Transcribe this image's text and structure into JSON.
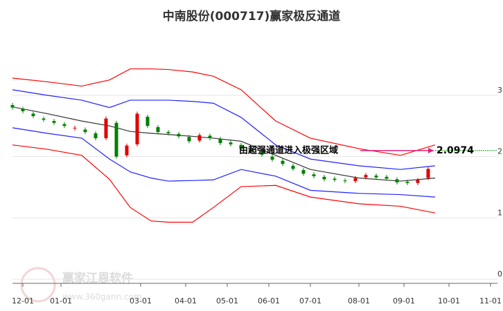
{
  "chart_data": {
    "type": "candlestick",
    "title": "中南股份(000717)赢家极反通道",
    "x": [
      0,
      3,
      6,
      9,
      12,
      15,
      18,
      21,
      24,
      27,
      30,
      33,
      36,
      39,
      42,
      45,
      48,
      51,
      54,
      57,
      60,
      63,
      66,
      69,
      72,
      75,
      78,
      81,
      84,
      87,
      90,
      93,
      96,
      99,
      102,
      105,
      108,
      111,
      114,
      117,
      120
    ],
    "open": [
      2.84,
      2.78,
      2.7,
      2.62,
      2.58,
      2.53,
      2.46,
      2.44,
      2.38,
      2.3,
      2.55,
      2.02,
      2.2,
      2.65,
      2.48,
      2.4,
      2.37,
      2.32,
      2.26,
      2.34,
      2.29,
      2.23,
      2.19,
      2.12,
      2.07,
      2.0,
      1.93,
      1.85,
      1.78,
      1.71,
      1.67,
      1.64,
      1.61,
      1.6,
      1.66,
      1.69,
      1.67,
      1.63,
      1.59,
      1.57,
      1.65
    ],
    "close": [
      2.8,
      2.74,
      2.66,
      2.6,
      2.55,
      2.5,
      2.47,
      2.4,
      2.3,
      2.62,
      2.0,
      2.18,
      2.7,
      2.5,
      2.4,
      2.38,
      2.33,
      2.25,
      2.35,
      2.3,
      2.22,
      2.2,
      2.13,
      2.08,
      2.03,
      1.95,
      1.88,
      1.8,
      1.72,
      1.68,
      1.63,
      1.62,
      1.6,
      1.65,
      1.7,
      1.66,
      1.64,
      1.58,
      1.57,
      1.62,
      1.8
    ],
    "up_color": "#e00000",
    "down_color": "#008000",
    "channels": {
      "x": [
        0,
        10,
        20,
        28,
        34,
        40,
        45,
        52,
        58,
        66,
        76,
        86,
        100,
        112,
        122
      ],
      "series": [
        {
          "color": "#ff0000",
          "values": [
            3.28,
            3.22,
            3.15,
            3.25,
            3.43,
            3.43,
            3.42,
            3.38,
            3.31,
            3.09,
            2.58,
            2.3,
            2.13,
            2.02,
            2.19
          ]
        },
        {
          "color": "#2020ff",
          "values": [
            3.09,
            3.0,
            2.92,
            2.8,
            2.92,
            2.92,
            2.92,
            2.9,
            2.87,
            2.64,
            2.19,
            1.96,
            1.85,
            1.79,
            1.85
          ]
        },
        {
          "color": "#333333",
          "values": [
            2.81,
            2.7,
            2.58,
            2.5,
            2.41,
            2.38,
            2.36,
            2.33,
            2.3,
            2.25,
            2.02,
            1.79,
            1.65,
            1.6,
            1.65
          ]
        },
        {
          "color": "#2020ff",
          "values": [
            2.47,
            2.38,
            2.3,
            1.96,
            1.75,
            1.65,
            1.6,
            1.61,
            1.62,
            1.79,
            1.68,
            1.45,
            1.4,
            1.38,
            1.34
          ]
        },
        {
          "color": "#ff0000",
          "values": [
            2.19,
            2.12,
            2.02,
            1.63,
            1.17,
            0.95,
            0.93,
            0.93,
            1.17,
            1.51,
            1.53,
            1.34,
            1.23,
            1.19,
            1.08
          ]
        }
      ]
    },
    "annotation": {
      "text": "由超强通道进入极强区域",
      "value": 2.0974,
      "x": 122
    },
    "xlim": [
      0,
      140
    ],
    "xticks": [
      {
        "value": 3,
        "label": "12-01"
      },
      {
        "value": 14,
        "label": "01-01"
      },
      {
        "value": 37,
        "label": "03-01"
      },
      {
        "value": 50,
        "label": "04-01"
      },
      {
        "value": 62,
        "label": "05-01"
      },
      {
        "value": 74,
        "label": "06-01"
      },
      {
        "value": 86,
        "label": "07-01"
      },
      {
        "value": 100,
        "label": "08-01"
      },
      {
        "value": 113,
        "label": "09-01"
      },
      {
        "value": 126,
        "label": "10-01"
      },
      {
        "value": 138,
        "label": "11-01"
      }
    ],
    "ylim": [
      0,
      3.9
    ],
    "yticks": [
      0,
      1,
      2,
      3
    ],
    "grid": true
  },
  "watermark": {
    "name": "赢家江恩软件",
    "url": "www.360gann.com"
  }
}
